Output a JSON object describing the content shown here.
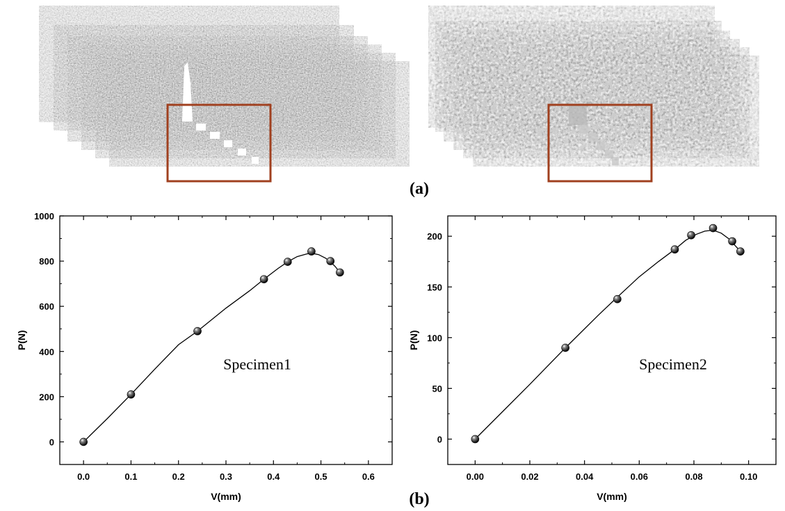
{
  "panel_labels": {
    "a": "(a)",
    "b": "(b)"
  },
  "colors": {
    "highlight_box": "#a0401f",
    "curve": "#000000",
    "marker": "#1a1a1a"
  },
  "images": [
    {
      "description_name": "speckle-image-stack-left",
      "highlight": true
    },
    {
      "description_name": "speckle-image-stack-right",
      "highlight": true
    }
  ],
  "chart_data": [
    {
      "type": "scatter",
      "fit_line": true,
      "xlabel": "V(mm)",
      "ylabel": "P(N)",
      "annotation": "Specimen1",
      "xlim": [
        -0.05,
        0.65
      ],
      "ylim": [
        -100,
        1000
      ],
      "xticks": [
        0.0,
        0.1,
        0.2,
        0.3,
        0.4,
        0.5,
        0.6
      ],
      "xtick_labels": [
        "0.0",
        "0.1",
        "0.2",
        "0.3",
        "0.4",
        "0.5",
        "0.6"
      ],
      "yticks": [
        0,
        200,
        400,
        600,
        800,
        1000
      ],
      "ytick_labels": [
        "0",
        "200",
        "400",
        "600",
        "800",
        "1000"
      ],
      "x": [
        0.0,
        0.1,
        0.24,
        0.38,
        0.43,
        0.48,
        0.52,
        0.54
      ],
      "y": [
        0,
        210,
        490,
        720,
        797,
        843,
        800,
        750
      ],
      "fit_x": [
        0.0,
        0.05,
        0.1,
        0.15,
        0.2,
        0.24,
        0.3,
        0.35,
        0.38,
        0.41,
        0.43,
        0.45,
        0.47,
        0.48,
        0.495,
        0.51,
        0.52,
        0.53,
        0.54
      ],
      "fit_y": [
        0,
        103,
        210,
        322,
        430,
        490,
        592,
        669,
        720,
        768,
        797,
        820,
        832,
        835,
        829,
        813,
        797,
        776,
        750
      ]
    },
    {
      "type": "scatter",
      "fit_line": true,
      "xlabel": "V(mm)",
      "ylabel": "P(N)",
      "annotation": "Specimen2",
      "xlim": [
        -0.01,
        0.11
      ],
      "ylim": [
        -25,
        220
      ],
      "xticks": [
        0.0,
        0.02,
        0.04,
        0.06,
        0.08,
        0.1
      ],
      "xtick_labels": [
        "0.00",
        "0.02",
        "0.04",
        "0.06",
        "0.08",
        "0.10"
      ],
      "yticks": [
        0,
        50,
        100,
        150,
        200
      ],
      "ytick_labels": [
        "0",
        "50",
        "100",
        "150",
        "200"
      ],
      "x": [
        0.0,
        0.033,
        0.052,
        0.073,
        0.079,
        0.087,
        0.094,
        0.097
      ],
      "y": [
        0,
        90,
        138,
        187,
        201,
        208,
        195,
        185
      ],
      "fit_x": [
        0.0,
        0.01,
        0.02,
        0.033,
        0.045,
        0.052,
        0.06,
        0.067,
        0.073,
        0.077,
        0.081,
        0.084,
        0.087,
        0.09,
        0.093,
        0.095,
        0.097
      ],
      "fit_y": [
        0,
        27,
        54,
        90,
        122,
        140,
        160,
        175,
        187,
        196,
        202,
        205,
        206,
        203,
        197,
        191,
        185
      ]
    }
  ]
}
